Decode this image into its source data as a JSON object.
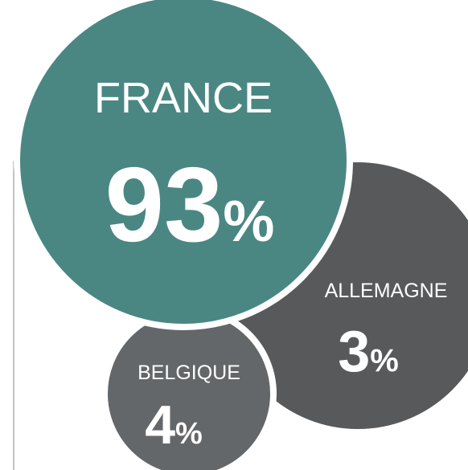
{
  "chart_data": {
    "type": "bubble",
    "categories": [
      "FRANCE",
      "ALLEMAGNE",
      "BELGIQUE"
    ],
    "values": [
      93,
      3,
      4
    ],
    "value_labels": [
      "93%",
      "3%",
      "4%"
    ],
    "colors": [
      "#4a8783",
      "#58595b",
      "#646769"
    ]
  }
}
